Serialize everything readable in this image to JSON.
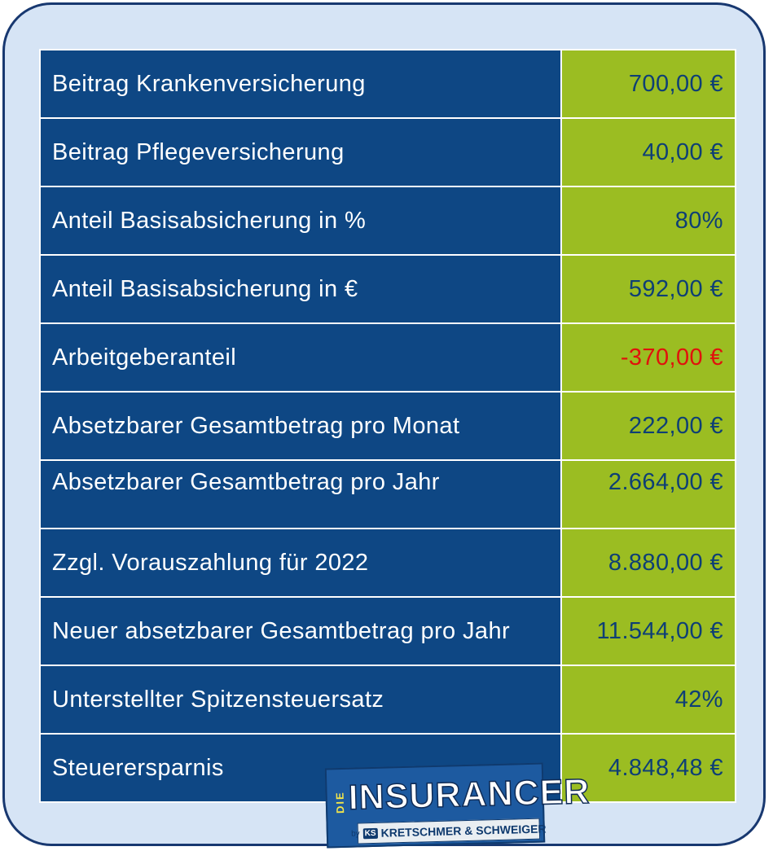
{
  "rows": [
    {
      "label": "Beitrag Krankenversicherung",
      "value": "700,00 €"
    },
    {
      "label": "Beitrag Pflegeversicherung",
      "value": "40,00 €"
    },
    {
      "label": "Anteil Basisabsicherung in %",
      "value": "80%"
    },
    {
      "label": "Anteil Basisabsicherung in €",
      "value": "592,00 €"
    },
    {
      "label": "Arbeitgeberanteil",
      "value": "-370,00 €"
    },
    {
      "label": "Absetzbarer Gesamtbetrag pro Monat",
      "value": "222,00 €"
    },
    {
      "label": "Absetzbarer Gesamtbetrag pro Jahr",
      "value": "2.664,00 €"
    },
    {
      "label": "Zzgl. Vorauszahlung für 2022",
      "value": "8.880,00 €"
    },
    {
      "label": "Neuer absetzbarer Gesamtbetrag pro Jahr",
      "value": "11.544,00 €"
    },
    {
      "label": "Unterstellter Spitzensteuersatz",
      "value": "42%"
    },
    {
      "label": "Steuerersparnis",
      "value": "4.848,48 €"
    }
  ],
  "colors": {
    "label_bg": "#0e4784",
    "value_bg": "#9bbd22",
    "value_text": "#0e3f75",
    "negative_text": "#e0120c",
    "frame_bg": "#d6e4f5"
  },
  "logo": {
    "prefix": "DIE",
    "name": "INSURANCER",
    "by": "by",
    "ks": "KS",
    "company": "KRETSCHMER & SCHWEIGER"
  }
}
